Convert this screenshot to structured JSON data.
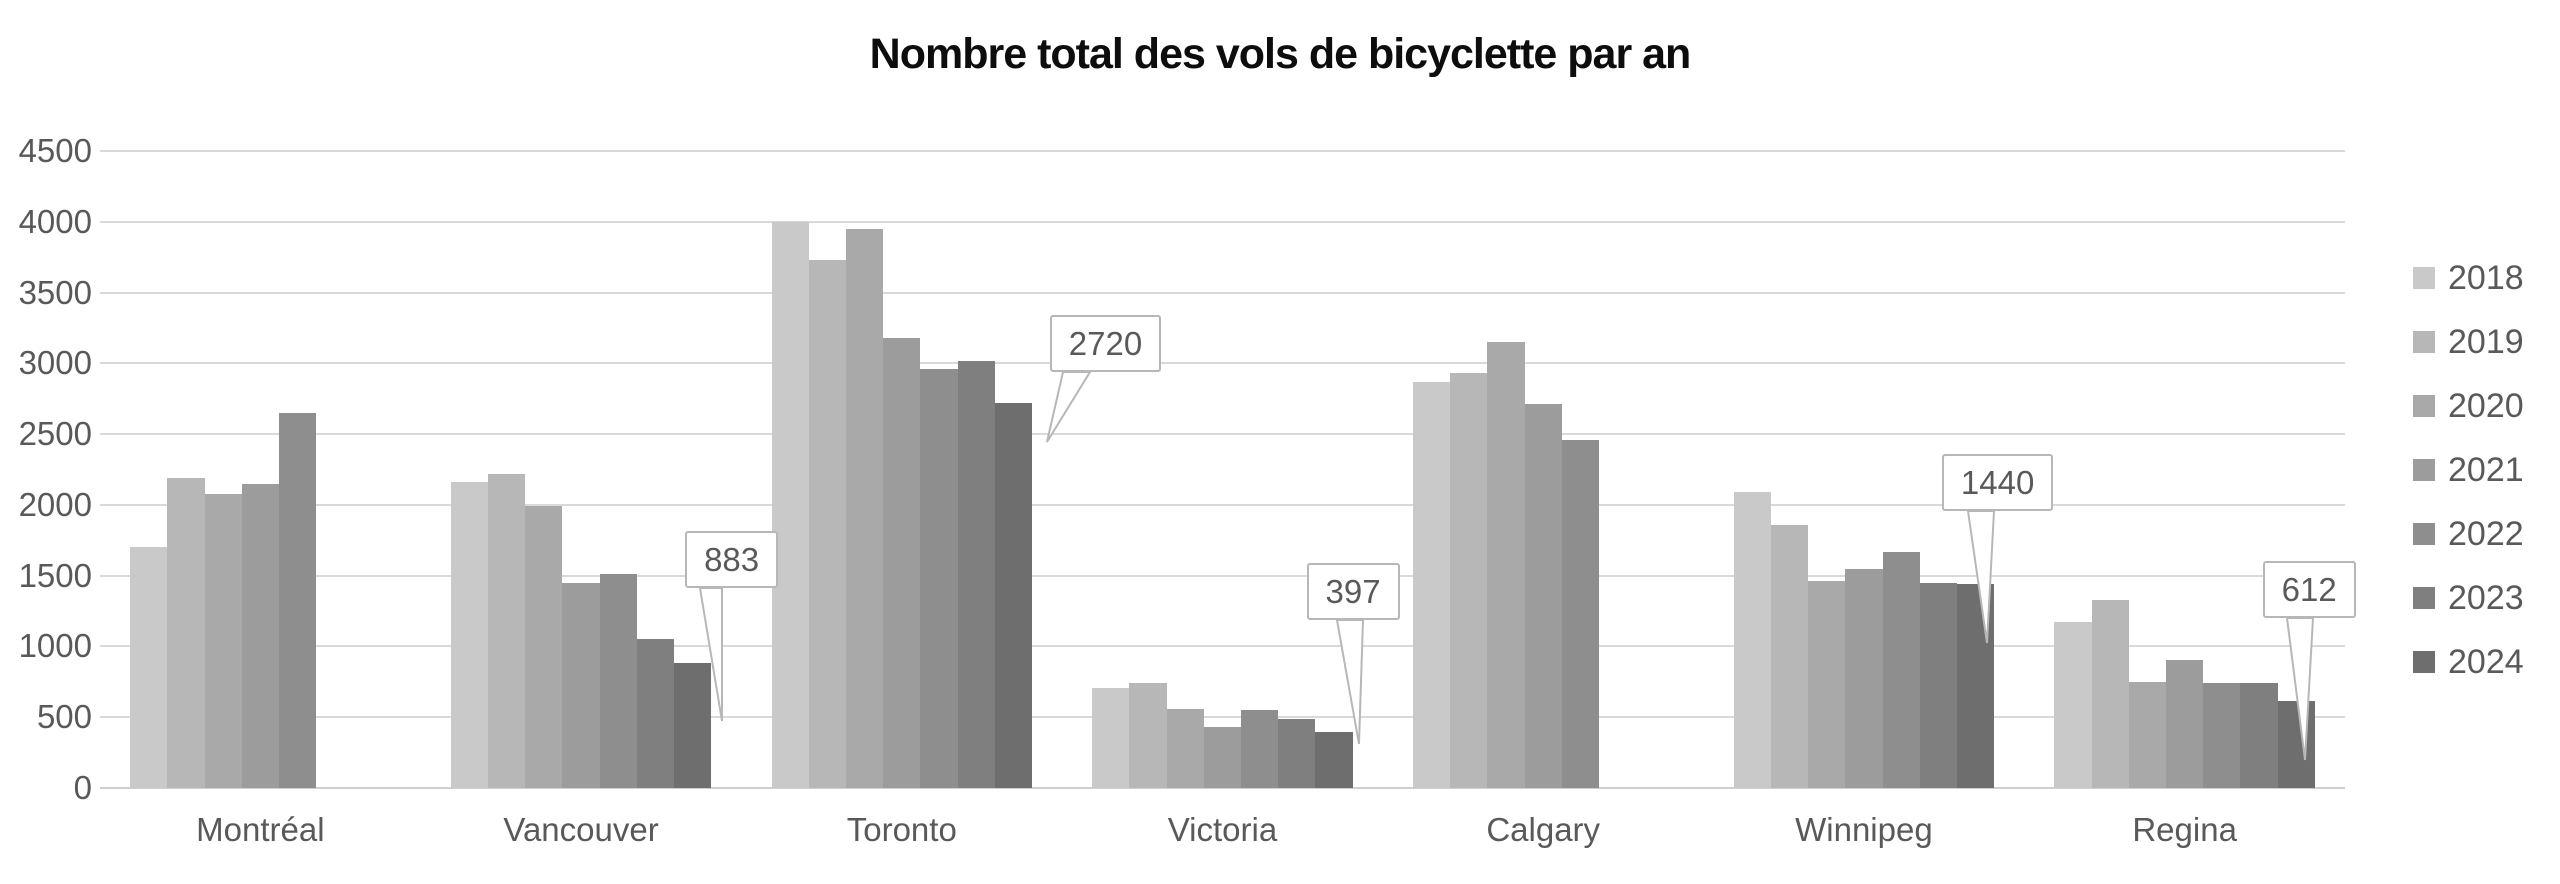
{
  "chart_data": {
    "type": "bar",
    "title": "Nombre total des vols de bicyclette par an",
    "categories": [
      "Montréal",
      "Vancouver",
      "Toronto",
      "Victoria",
      "Calgary",
      "Winnipeg",
      "Regina"
    ],
    "series": [
      {
        "name": "2018",
        "color": "#c9c9c9",
        "values": [
          1700,
          2160,
          4000,
          710,
          2865,
          2090,
          1170
        ]
      },
      {
        "name": "2019",
        "color": "#b7b7b7",
        "values": [
          2190,
          2220,
          3730,
          740,
          2935,
          1855,
          1330
        ]
      },
      {
        "name": "2020",
        "color": "#a9a9a9",
        "values": [
          2080,
          1990,
          3950,
          560,
          3150,
          1465,
          750
        ]
      },
      {
        "name": "2021",
        "color": "#9c9c9c",
        "values": [
          2150,
          1450,
          3180,
          430,
          2715,
          1550,
          905
        ]
      },
      {
        "name": "2022",
        "color": "#8e8e8e",
        "values": [
          2650,
          1515,
          2960,
          548,
          2460,
          1670,
          740
        ]
      },
      {
        "name": "2023",
        "color": "#7f7f7f",
        "values": [
          null,
          1050,
          3020,
          490,
          null,
          1450,
          745
        ]
      },
      {
        "name": "2024",
        "color": "#6e6e6e",
        "values": [
          null,
          883,
          2720,
          397,
          null,
          1440,
          612
        ]
      }
    ],
    "ylim": [
      0,
      4500
    ],
    "ytick_step": 500,
    "yticks": [
      "0",
      "500",
      "1000",
      "1500",
      "2000",
      "2500",
      "3000",
      "3500",
      "4000",
      "4500"
    ],
    "grid": true,
    "legend_position": "right",
    "legend_entries": [
      "2018",
      "2019",
      "2020",
      "2021",
      "2022",
      "2023",
      "2024"
    ],
    "callouts": [
      {
        "category": "Vancouver",
        "series": "2024",
        "label": "883"
      },
      {
        "category": "Toronto",
        "series": "2024",
        "label": "2720"
      },
      {
        "category": "Victoria",
        "series": "2024",
        "label": "397"
      },
      {
        "category": "Winnipeg",
        "series": "2024",
        "label": "1440"
      },
      {
        "category": "Regina",
        "series": "2024",
        "label": "612"
      }
    ]
  },
  "styles": {
    "axis_text_color": "#595959",
    "gridline_color": "#d9d9d9",
    "title_color": "#0d0d0d",
    "callout_border": "#b7b7b7",
    "callout_bg": "#ffffff"
  }
}
